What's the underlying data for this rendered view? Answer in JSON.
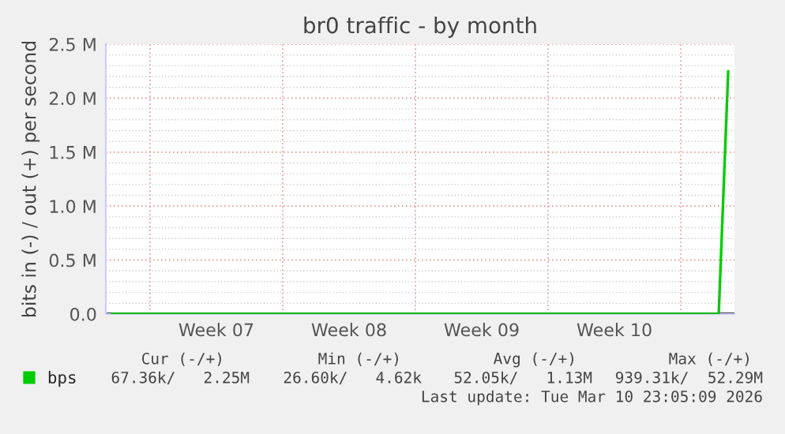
{
  "chart_data": {
    "type": "line",
    "title": "br0 traffic - by month",
    "ylabel": "bits in (-) / out (+) per second",
    "categories": [
      null,
      null,
      null,
      null,
      null,
      null,
      null,
      null,
      null,
      null,
      null,
      "Week 07",
      null,
      null,
      null,
      null,
      null,
      null,
      null,
      null,
      null,
      null,
      null,
      null,
      null,
      "Week 08",
      null,
      null,
      null,
      null,
      null,
      null,
      null,
      null,
      null,
      null,
      null,
      null,
      null,
      "Week 09",
      null,
      null,
      null,
      null,
      null,
      null,
      null,
      null,
      null,
      null,
      null,
      null,
      null,
      "Week 10",
      null,
      null,
      null,
      null,
      null,
      null,
      null,
      null,
      null,
      null,
      null,
      null
    ],
    "series": [
      {
        "name": "bps",
        "color": "#00cc00",
        "values": [
          0,
          0,
          0,
          0,
          0,
          0,
          0,
          0,
          0,
          0,
          0,
          0,
          0,
          0,
          0,
          0,
          0,
          0,
          0,
          0,
          0,
          0,
          0,
          0,
          0,
          0,
          0,
          0,
          0,
          0,
          0,
          0,
          0,
          0,
          0,
          0,
          0,
          0,
          0,
          0,
          0,
          0,
          0,
          0,
          0,
          0,
          0,
          0,
          0,
          0,
          0,
          0,
          0,
          0,
          0,
          0,
          0,
          0,
          0,
          0,
          0,
          0,
          0,
          0,
          0,
          2250000
        ]
      }
    ],
    "ylim": [
      0,
      2500000
    ],
    "yticks": [
      {
        "value": 0,
        "label": "0.0"
      },
      {
        "value": 500000,
        "label": "0.5 M"
      },
      {
        "value": 1000000,
        "label": "1.0 M"
      },
      {
        "value": 1500000,
        "label": "1.5 M"
      },
      {
        "value": 2000000,
        "label": "2.0 M"
      },
      {
        "value": 2500000,
        "label": "2.5 M"
      }
    ],
    "grid": true,
    "legend": "bottom",
    "annotations": [
      "Cur (-/+)",
      "Min (-/+)",
      "Avg (-/+)",
      "Max (-/+)",
      "67.36k/   2.25M",
      "26.60k/   4.62k",
      "52.05k/   1.13M",
      "939.31k/  52.29M",
      "Last update: Tue Mar 10 23:05:09 2026"
    ]
  }
}
